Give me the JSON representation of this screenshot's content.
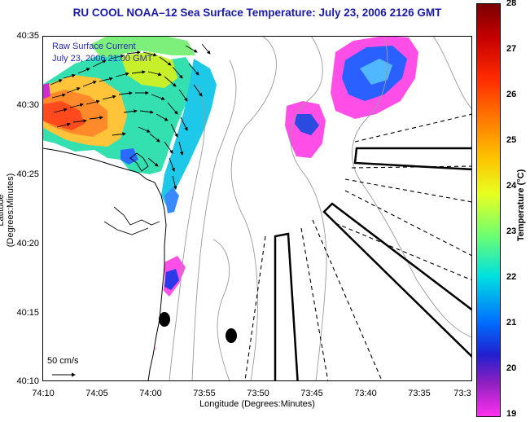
{
  "title": "RU COOL  NOAA–12  Sea Surface Temperature:  July 23, 2006 2126 GMT",
  "annotation": {
    "line1": "Raw Surface Current",
    "line2": "July 23, 2006 21:00 GMT"
  },
  "scale_bar": {
    "label": "50 cm/s"
  },
  "axes": {
    "xlabel": "Longitude (Degrees:Minutes)",
    "ylabel": "Latitude (Degrees:Minutes)",
    "xticks": [
      "74:10",
      "74:05",
      "74:00",
      "73:55",
      "73:50",
      "73:45",
      "73:40",
      "73:35",
      "73:3"
    ],
    "yticks": [
      "40:35",
      "40:30",
      "40:25",
      "40:20",
      "40:15",
      "40:10"
    ]
  },
  "colorbar": {
    "label": "Temperature (°C)",
    "ticks": [
      "28",
      "27",
      "26",
      "25",
      "24",
      "23",
      "22",
      "21",
      "20",
      "19"
    ],
    "min": 19,
    "max": 28
  },
  "colors": {
    "title": "#1a1aa8",
    "land": "#ffffff",
    "coastline": "#000000",
    "bathymetry": "#9a9a9a",
    "shipping_lanes": "#000000"
  }
}
